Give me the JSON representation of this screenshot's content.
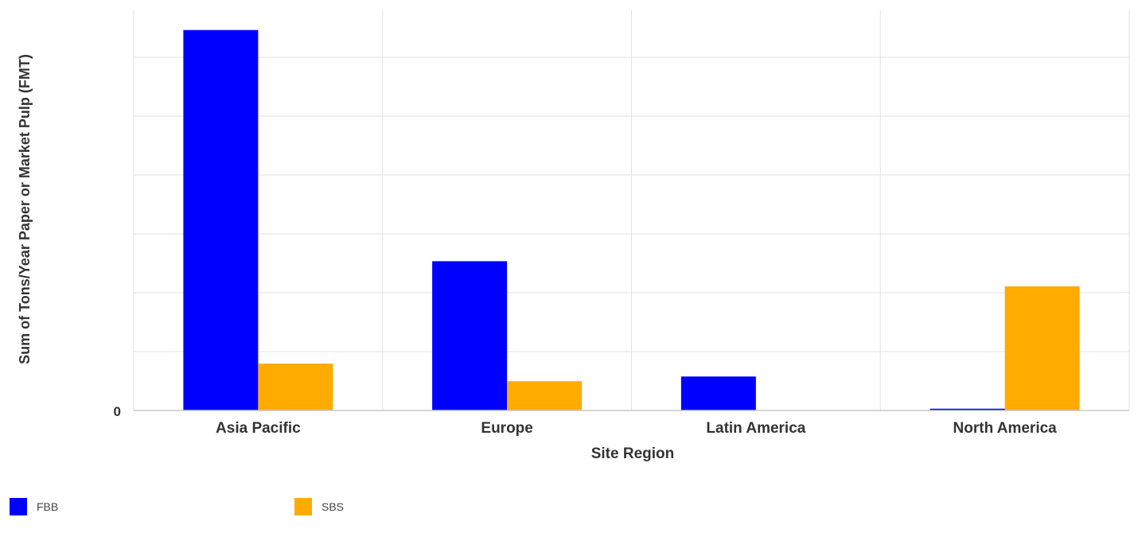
{
  "chart_data": {
    "type": "bar",
    "title": "",
    "xlabel": "Site Region",
    "ylabel": "Sum of Tons/Year Paper or Market Pulp (FMT)",
    "categories": [
      "Asia Pacific",
      "Europe",
      "Latin America",
      "North America"
    ],
    "series": [
      {
        "name": "FBB",
        "color": "#0000ff",
        "values": [
          6.5,
          2.55,
          0.58,
          0.03
        ]
      },
      {
        "name": "SBS",
        "color": "#ffab00",
        "values": [
          0.8,
          0.5,
          0,
          2.12
        ]
      }
    ],
    "ylim": [
      0,
      6.85
    ],
    "y_tick_labels": [
      "0"
    ],
    "grid": true,
    "legend_position": "bottom-left"
  }
}
